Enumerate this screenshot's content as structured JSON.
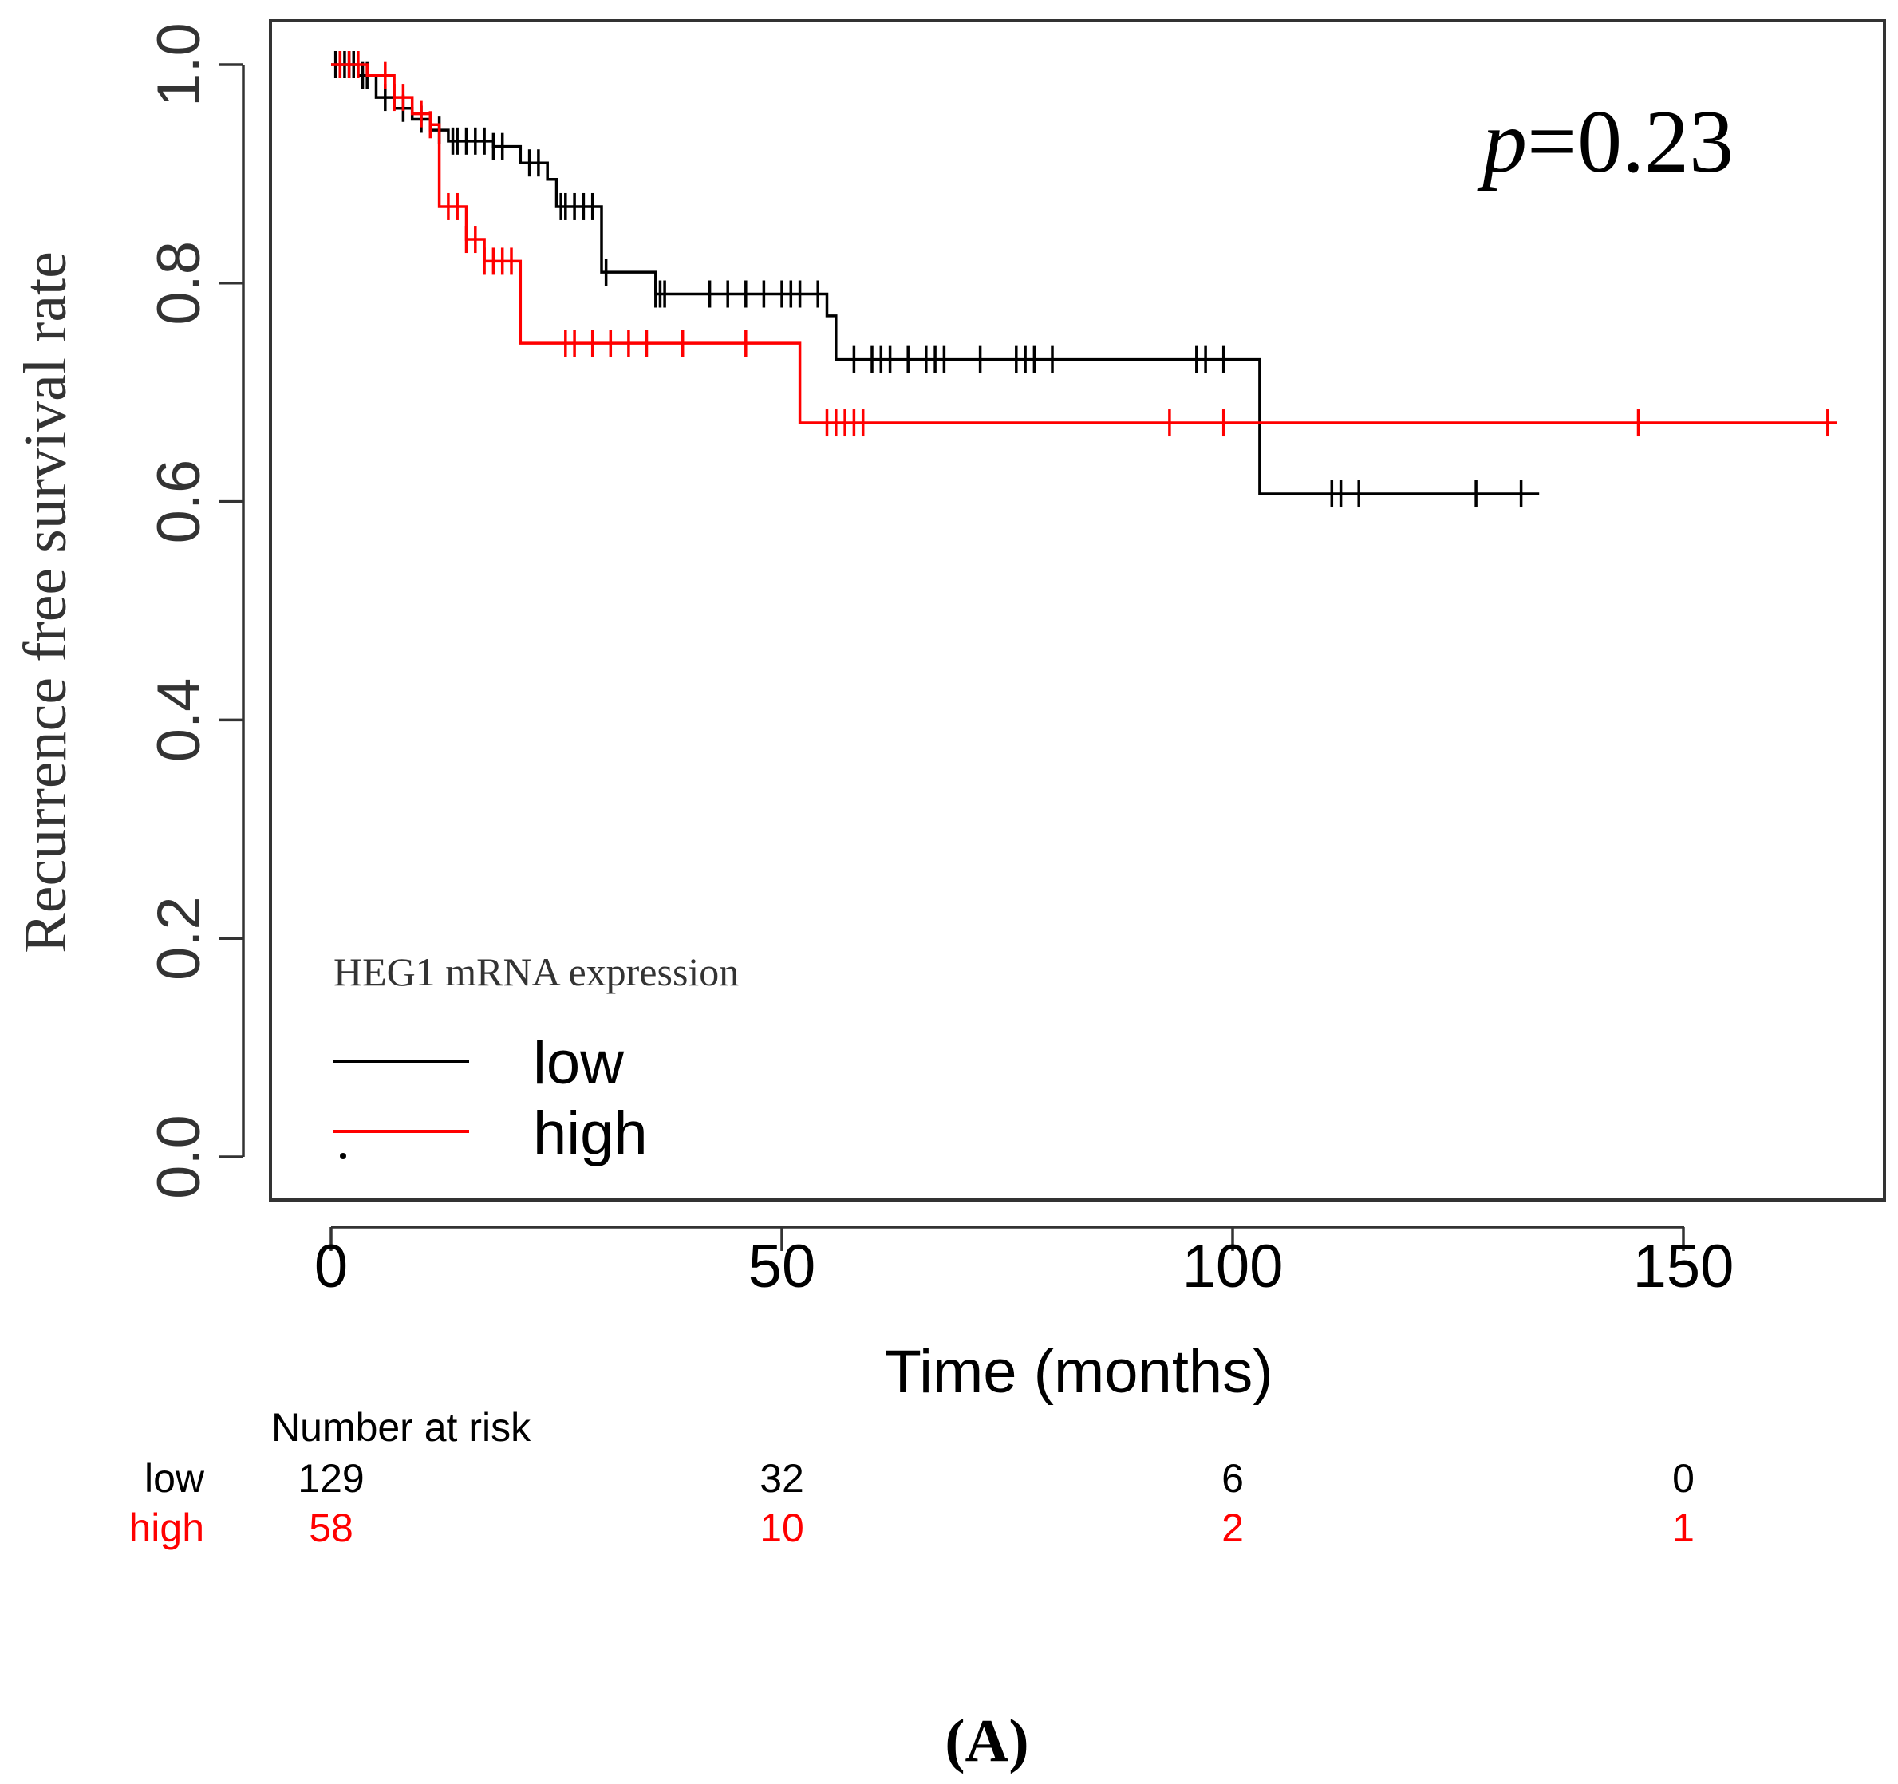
{
  "chart_data": {
    "type": "line",
    "subtype": "kaplan-meier",
    "panel_label": "(A)",
    "xlabel": "Time (months)",
    "ylabel": "Recurrence free survival rate",
    "xlim": [
      0,
      170
    ],
    "ylim": [
      0,
      1.0
    ],
    "xticks": [
      0,
      50,
      100,
      150
    ],
    "yticks": [
      "0.0",
      "0.2",
      "0.4",
      "0.6",
      "0.8",
      "1.0"
    ],
    "annotation": {
      "text_italic": "p",
      "text_rest": "=0.23",
      "full": "p=0.23"
    },
    "legend": {
      "title": "HEG1 mRNA expression",
      "position": "bottom-left",
      "entries": [
        {
          "label": "low",
          "color": "#000000"
        },
        {
          "label": "high",
          "color": "#ff0000"
        }
      ]
    },
    "series": [
      {
        "name": "low",
        "color": "#000000",
        "steps": [
          [
            0,
            1.0
          ],
          [
            3,
            0.99
          ],
          [
            5,
            0.97
          ],
          [
            7,
            0.96
          ],
          [
            9,
            0.95
          ],
          [
            11,
            0.94
          ],
          [
            13,
            0.93
          ],
          [
            18,
            0.925
          ],
          [
            21,
            0.91
          ],
          [
            24,
            0.895
          ],
          [
            25,
            0.87
          ],
          [
            30,
            0.81
          ],
          [
            36,
            0.79
          ],
          [
            55,
            0.77
          ],
          [
            56,
            0.73
          ],
          [
            103,
            0.607
          ]
        ],
        "end_x": 134,
        "censor_x": [
          0.5,
          1.0,
          1.5,
          2.0,
          2.5,
          3.5,
          4,
          6,
          8,
          10,
          12,
          13.5,
          14,
          15,
          16,
          17,
          18,
          19,
          22,
          23,
          25.5,
          26,
          27,
          28,
          29,
          30.5,
          36,
          36.5,
          37,
          42,
          44,
          46,
          48,
          50,
          51,
          52,
          54,
          58,
          60,
          61,
          62,
          64,
          66,
          67,
          68,
          72,
          76,
          77,
          78,
          80,
          96,
          97,
          99,
          111,
          112,
          114,
          127,
          132
        ]
      },
      {
        "name": "high",
        "color": "#ff0000",
        "steps": [
          [
            0,
            1.0
          ],
          [
            4,
            0.99
          ],
          [
            7,
            0.97
          ],
          [
            9,
            0.955
          ],
          [
            11,
            0.945
          ],
          [
            12,
            0.87
          ],
          [
            15,
            0.84
          ],
          [
            17,
            0.82
          ],
          [
            21,
            0.745
          ],
          [
            52,
            0.672
          ]
        ],
        "end_x": 167,
        "censor_x": [
          1,
          2,
          3,
          6,
          7,
          8,
          10,
          11,
          13,
          14,
          15,
          16,
          17,
          18,
          19,
          20,
          26,
          27,
          29,
          31,
          33,
          35,
          39,
          46,
          55,
          56,
          57,
          58,
          59,
          93,
          99,
          145,
          166
        ]
      }
    ],
    "risk_table": {
      "title": "Number at risk",
      "times": [
        0,
        50,
        100,
        150
      ],
      "rows": [
        {
          "label": "low",
          "color": "#000000",
          "values": [
            "129",
            "32",
            "6",
            "0"
          ]
        },
        {
          "label": "high",
          "color": "#ff0000",
          "values": [
            "58",
            "10",
            "2",
            "1"
          ]
        }
      ]
    }
  }
}
